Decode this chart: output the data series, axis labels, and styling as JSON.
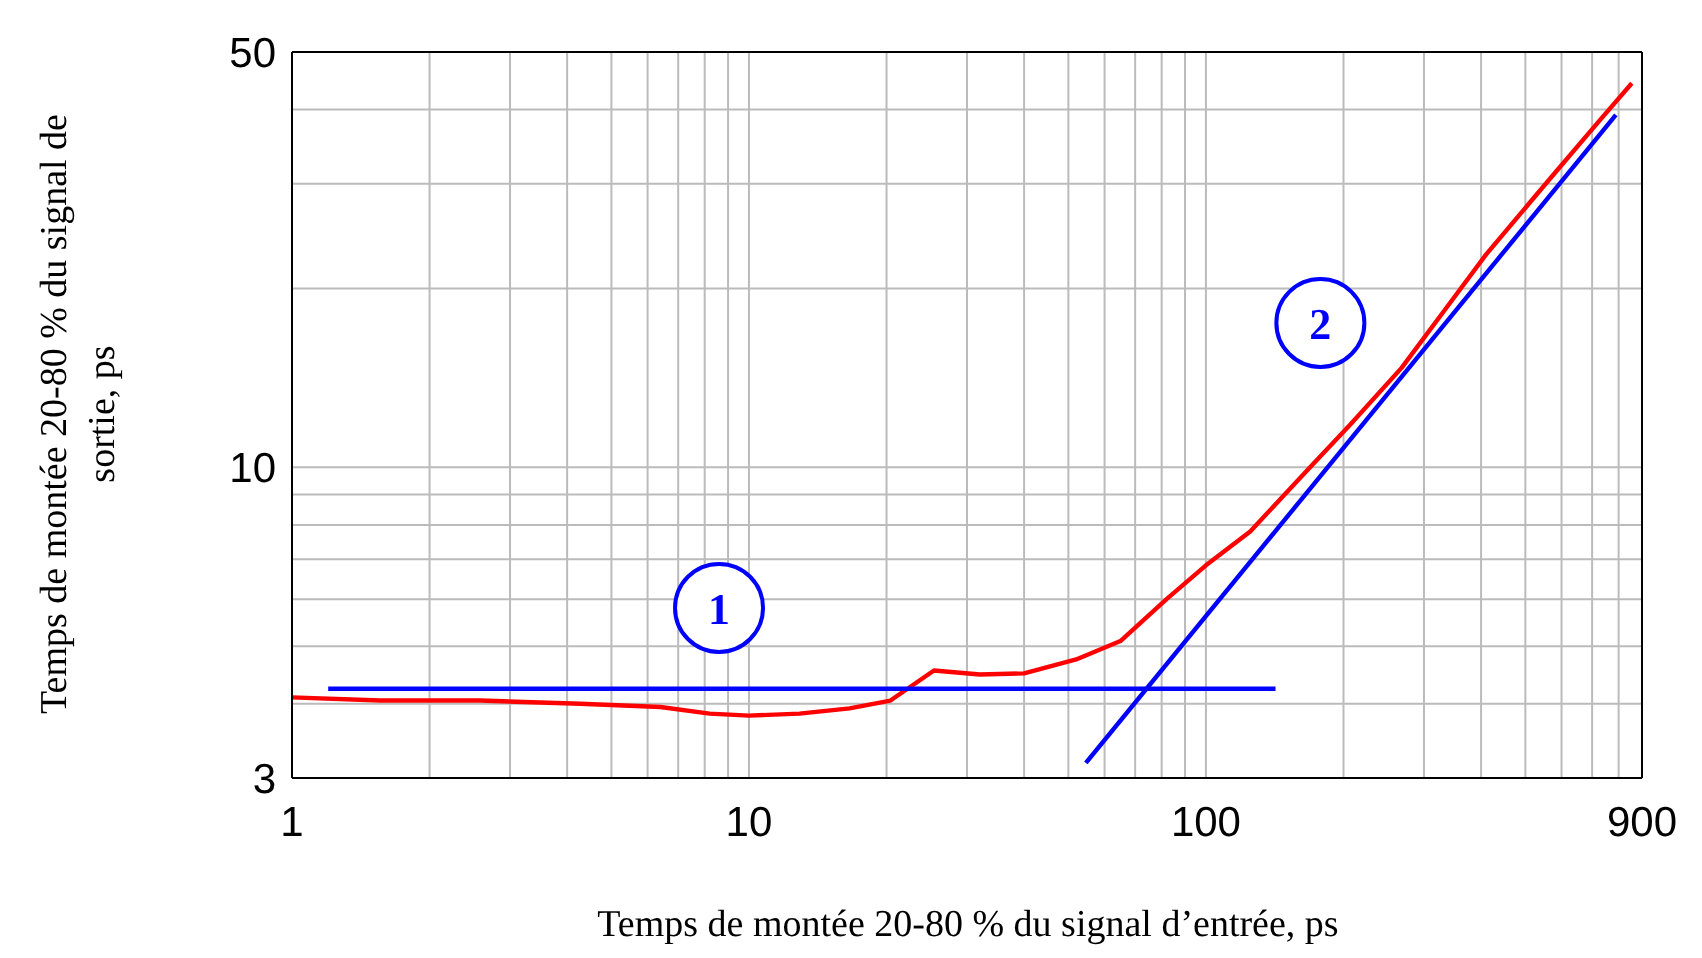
{
  "chart_data": {
    "type": "line",
    "xlabel": "Temps de montée 20-80 % du signal d’entrée, ps",
    "ylabel": "Temps de montée 20-80 % du signal de sortie, ps",
    "log": "xy",
    "grid": true,
    "marker": "none",
    "line_style": "solid",
    "xlim": [
      1,
      900
    ],
    "ylim": [
      3,
      50
    ],
    "xticks": [
      1,
      {
        "value": 2,
        "label": null
      },
      {
        "value": 3,
        "label": null
      },
      {
        "value": 4,
        "label": null
      },
      {
        "value": 5,
        "label": null
      },
      {
        "value": 6,
        "label": null
      },
      {
        "value": 7,
        "label": null
      },
      {
        "value": 8,
        "label": null
      },
      {
        "value": 9,
        "label": null
      },
      10,
      {
        "value": 20,
        "label": null
      },
      {
        "value": 30,
        "label": null
      },
      {
        "value": 40,
        "label": null
      },
      {
        "value": 50,
        "label": null
      },
      {
        "value": 60,
        "label": null
      },
      {
        "value": 70,
        "label": null
      },
      {
        "value": 80,
        "label": null
      },
      {
        "value": 90,
        "label": null
      },
      100,
      {
        "value": 200,
        "label": null
      },
      {
        "value": 300,
        "label": null
      },
      {
        "value": 400,
        "label": null
      },
      {
        "value": 500,
        "label": null
      },
      {
        "value": 600,
        "label": null
      },
      {
        "value": 700,
        "label": null
      },
      {
        "value": 800,
        "label": null
      },
      900
    ],
    "yticks": [
      3,
      {
        "value": 4,
        "label": null
      },
      {
        "value": 5,
        "label": null
      },
      {
        "value": 6,
        "label": null
      },
      {
        "value": 7,
        "label": null
      },
      {
        "value": 8,
        "label": null
      },
      {
        "value": 9,
        "label": null
      },
      10,
      {
        "value": 20,
        "label": null
      },
      {
        "value": 30,
        "label": null
      },
      {
        "value": 40,
        "label": null
      },
      50
    ],
    "series": [
      {
        "color": "#ff0000",
        "x": [
          1,
          1.56,
          2.58,
          4.27,
          6.4,
          8.2,
          10,
          12.9,
          16.6,
          20.4,
          25.4,
          32,
          40,
          52,
          65,
          82,
          100,
          125,
          169,
          207,
          268,
          342,
          410,
          566,
          728,
          855
        ],
        "values": [
          4.1,
          4.05,
          4.05,
          4.0,
          3.95,
          3.85,
          3.82,
          3.85,
          3.93,
          4.05,
          4.55,
          4.48,
          4.5,
          4.75,
          5.1,
          6.0,
          6.84,
          7.8,
          10,
          11.8,
          14.7,
          18.9,
          22.8,
          30.6,
          38.4,
          44.3
        ]
      },
      {
        "color": "#0000ff",
        "x": [
          1.2,
          142
        ],
        "values": [
          4.24,
          4.24
        ]
      },
      {
        "color": "#0000ff",
        "x": [
          54.6,
          789
        ],
        "values": [
          3.18,
          39.2
        ]
      }
    ],
    "annotations": [
      {
        "text": "1",
        "x": 8.6,
        "y": 5.8
      },
      {
        "text": "2",
        "x": 178,
        "y": 17.5
      }
    ]
  }
}
